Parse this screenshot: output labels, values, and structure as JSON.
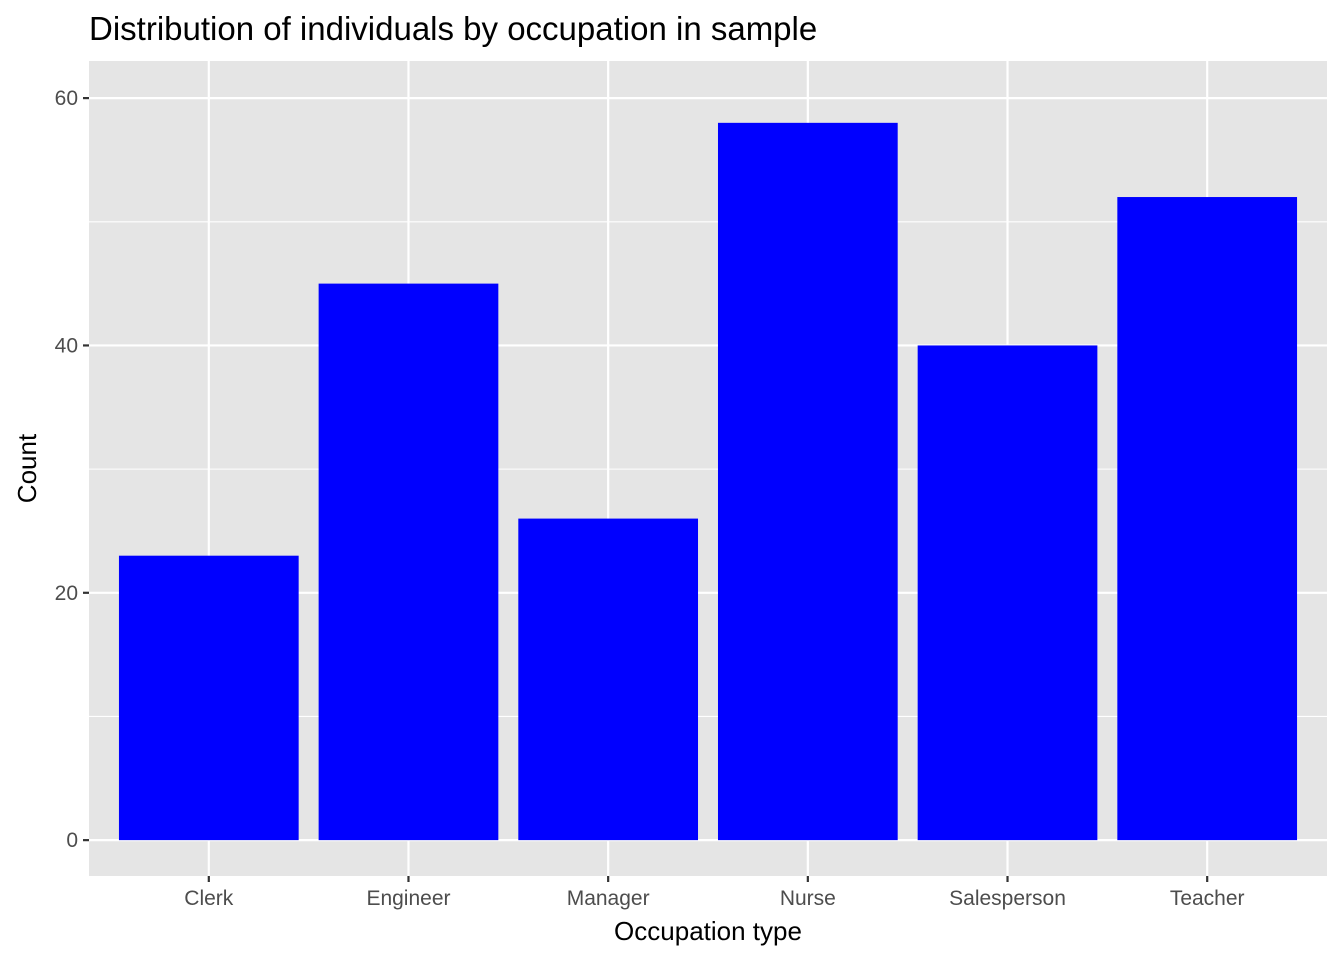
{
  "chart_data": {
    "type": "bar",
    "title": "Distribution of individuals by occupation in sample",
    "xlabel": "Occupation type",
    "ylabel": "Count",
    "categories": [
      "Clerk",
      "Engineer",
      "Manager",
      "Nurse",
      "Salesperson",
      "Teacher"
    ],
    "values": [
      23,
      45,
      26,
      58,
      40,
      52
    ],
    "ylim": [
      -2.9,
      63
    ],
    "yticks": [
      0,
      20,
      40,
      60
    ],
    "grid": true,
    "legend": "none",
    "bar_color": "#0000ff",
    "panel_background": "#e5e5e5",
    "grid_color": "#ffffff"
  }
}
